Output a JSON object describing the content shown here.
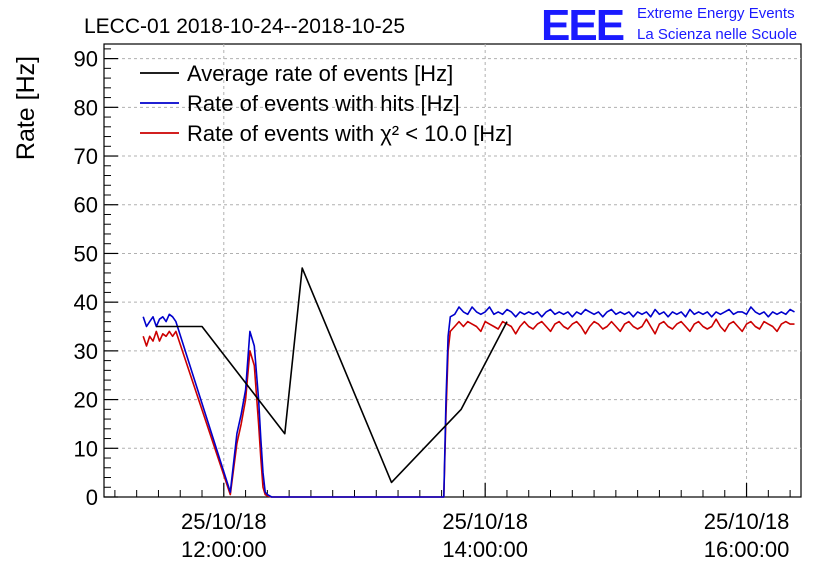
{
  "logo": {
    "text": "EEE",
    "line1": "Extreme Energy Events",
    "line2": "La Scienza nelle Scuole",
    "color": "#1a1aff"
  },
  "chart_data": {
    "type": "line",
    "title": "LECC-01 2018-10-24--2018-10-25",
    "ylabel": "Rate [Hz]",
    "xlabel": "",
    "ylim": [
      0,
      93
    ],
    "xlim_minutes": [
      -55,
      265
    ],
    "x_unit": "minutes after 25/10/18 12:00:00",
    "grid": true,
    "legend_position": "top-left",
    "yticks": [
      0,
      10,
      20,
      30,
      40,
      50,
      60,
      70,
      80,
      90
    ],
    "xticks": [
      {
        "x": 0,
        "date": "25/10/18",
        "time": "12:00:00"
      },
      {
        "x": 120,
        "date": "25/10/18",
        "time": "14:00:00"
      },
      {
        "x": 240,
        "date": "25/10/18",
        "time": "16:00:00"
      }
    ],
    "series": [
      {
        "name": "Average rate of events [Hz]",
        "color": "#000000",
        "x": [
          -31,
          -10,
          28,
          36,
          77,
          109,
          130
        ],
        "y": [
          35,
          35,
          13,
          47,
          3,
          18,
          36
        ]
      },
      {
        "name": "Rate of events with hits [Hz]",
        "color": "#0000cc",
        "x": [
          -37,
          -35.5,
          -34,
          -32.5,
          -31,
          -29.5,
          -28,
          -26.5,
          -25,
          -23.5,
          -22,
          3,
          6,
          8,
          10,
          12,
          14,
          16,
          17,
          18,
          19,
          20,
          22,
          30,
          40,
          50,
          60,
          70,
          80,
          90,
          101,
          102,
          103,
          104,
          106,
          108,
          110,
          112,
          114,
          116,
          118,
          120,
          122,
          124,
          126,
          128,
          130,
          132,
          134,
          136,
          138,
          140,
          142,
          144,
          146,
          148,
          150,
          152,
          154,
          156,
          158,
          160,
          162,
          164,
          166,
          168,
          170,
          172,
          174,
          176,
          178,
          180,
          182,
          184,
          186,
          188,
          190,
          192,
          194,
          196,
          198,
          200,
          202,
          204,
          206,
          208,
          210,
          212,
          214,
          216,
          218,
          220,
          222,
          224,
          226,
          228,
          230,
          232,
          234,
          236,
          238,
          240,
          242,
          244,
          246,
          248,
          250,
          252,
          254,
          256,
          258,
          260,
          262
        ],
        "y": [
          37,
          35,
          36,
          37,
          35,
          36.5,
          37,
          36,
          37.5,
          37,
          36,
          1,
          13,
          17,
          22,
          34,
          31,
          20,
          12,
          5,
          1,
          0.5,
          0,
          0,
          0,
          0,
          0,
          0,
          0,
          0,
          0,
          20,
          33,
          37,
          37.5,
          39,
          38,
          37.5,
          39,
          38,
          37.5,
          38,
          39,
          37.5,
          38,
          37.5,
          38.5,
          38,
          37,
          38,
          37.5,
          38,
          37.5,
          38,
          37,
          38,
          38.5,
          37.5,
          38,
          37.5,
          38,
          37,
          38,
          37.5,
          38.5,
          38,
          37.5,
          38,
          37,
          38,
          38.5,
          37.5,
          38,
          37.5,
          38,
          37,
          38,
          37.5,
          38,
          37,
          38.5,
          37.5,
          38,
          37,
          38,
          37.5,
          38,
          37,
          38.5,
          37.5,
          38,
          37.5,
          38,
          37,
          38,
          37.5,
          38,
          38.5,
          37.5,
          38,
          38,
          37.5,
          39,
          38,
          37.5,
          38,
          37,
          38,
          37.5,
          38,
          37.5,
          38.5,
          38
        ]
      },
      {
        "name": "Rate of events with χ² < 10.0 [Hz]",
        "color": "#cc0000",
        "x": [
          -37,
          -35.5,
          -34,
          -32.5,
          -31,
          -29.5,
          -28,
          -26.5,
          -25,
          -23.5,
          -22,
          3,
          6,
          8,
          10,
          12,
          14,
          16,
          17,
          18,
          19,
          20,
          22,
          30,
          40,
          50,
          60,
          70,
          80,
          90,
          101,
          102,
          103,
          104,
          106,
          108,
          110,
          112,
          114,
          116,
          118,
          120,
          122,
          124,
          126,
          128,
          130,
          132,
          134,
          136,
          138,
          140,
          142,
          144,
          146,
          148,
          150,
          152,
          154,
          156,
          158,
          160,
          162,
          164,
          166,
          168,
          170,
          172,
          174,
          176,
          178,
          180,
          182,
          184,
          186,
          188,
          190,
          192,
          194,
          196,
          198,
          200,
          202,
          204,
          206,
          208,
          210,
          212,
          214,
          216,
          218,
          220,
          222,
          224,
          226,
          228,
          230,
          232,
          234,
          236,
          238,
          240,
          242,
          244,
          246,
          248,
          250,
          252,
          254,
          256,
          258,
          260,
          262
        ],
        "y": [
          33,
          31,
          33,
          32,
          34,
          32,
          33.5,
          33,
          34,
          33,
          34,
          0.5,
          11,
          15,
          20,
          30,
          27,
          15,
          8,
          2,
          0.5,
          0.2,
          0,
          0,
          0,
          0,
          0,
          0,
          0,
          0,
          0,
          17,
          30,
          34,
          35,
          36,
          35,
          36,
          35.5,
          35,
          34,
          36,
          35.5,
          35,
          34.5,
          36,
          35.5,
          35,
          33.5,
          35,
          36,
          35,
          34.5,
          35.5,
          36,
          35,
          34,
          35.5,
          36,
          35,
          34.5,
          35.5,
          36,
          35,
          33.5,
          35,
          36,
          35.5,
          34.5,
          35,
          36,
          35,
          34,
          35.5,
          36,
          35,
          34.5,
          35,
          36.5,
          35,
          33.5,
          35.5,
          36,
          35,
          34.5,
          35.5,
          36,
          35,
          34,
          35.5,
          36,
          35,
          34.5,
          35,
          36.5,
          35,
          34,
          35.5,
          36,
          35,
          34,
          35.5,
          36,
          35,
          34.5,
          36,
          35.5,
          35,
          34,
          35.5,
          36,
          35.5,
          35.5
        ]
      }
    ]
  }
}
